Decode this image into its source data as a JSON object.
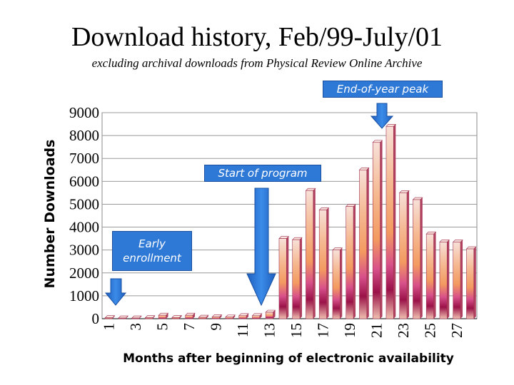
{
  "title": "Download history, Feb/99-July/01",
  "subtitle": "excluding archival downloads from Physical Review Online Archive",
  "callouts": {
    "end_of_year_peak": "End-of-year peak",
    "start_of_program": "Start of program",
    "early_enrollment": "Early enrollment"
  },
  "colors": {
    "bar_light": "#f7d9d0",
    "bar_mid": "#f4a060",
    "bar_dark": "#8c1040",
    "callout": "#2e78d6",
    "arrow": "#2e78d6"
  },
  "chart_data": {
    "type": "bar",
    "title": "Download history, Feb/99-July/01",
    "subtitle": "excluding archival downloads from Physical Review Online Archive",
    "xlabel": "Months after beginning of electronic availability",
    "ylabel": "Number Downloads",
    "ylim": [
      0,
      9000
    ],
    "yticks": [
      0,
      1000,
      2000,
      3000,
      4000,
      5000,
      6000,
      7000,
      8000,
      9000
    ],
    "xtick_labels": [
      "1",
      "3",
      "5",
      "7",
      "9",
      "11",
      "13",
      "15",
      "17",
      "19",
      "21",
      "23",
      "25",
      "27"
    ],
    "grid": true,
    "legend": "none",
    "categories": [
      1,
      2,
      3,
      4,
      5,
      6,
      7,
      8,
      9,
      10,
      11,
      12,
      13,
      14,
      15,
      16,
      17,
      18,
      19,
      20,
      21,
      22,
      23,
      24,
      25,
      26,
      27,
      28
    ],
    "values": [
      40,
      30,
      30,
      40,
      150,
      50,
      150,
      60,
      80,
      70,
      130,
      130,
      280,
      3500,
      3450,
      5600,
      4750,
      3000,
      4900,
      6500,
      7700,
      8400,
      5500,
      5200,
      3700,
      3350,
      3350,
      3050
    ]
  }
}
